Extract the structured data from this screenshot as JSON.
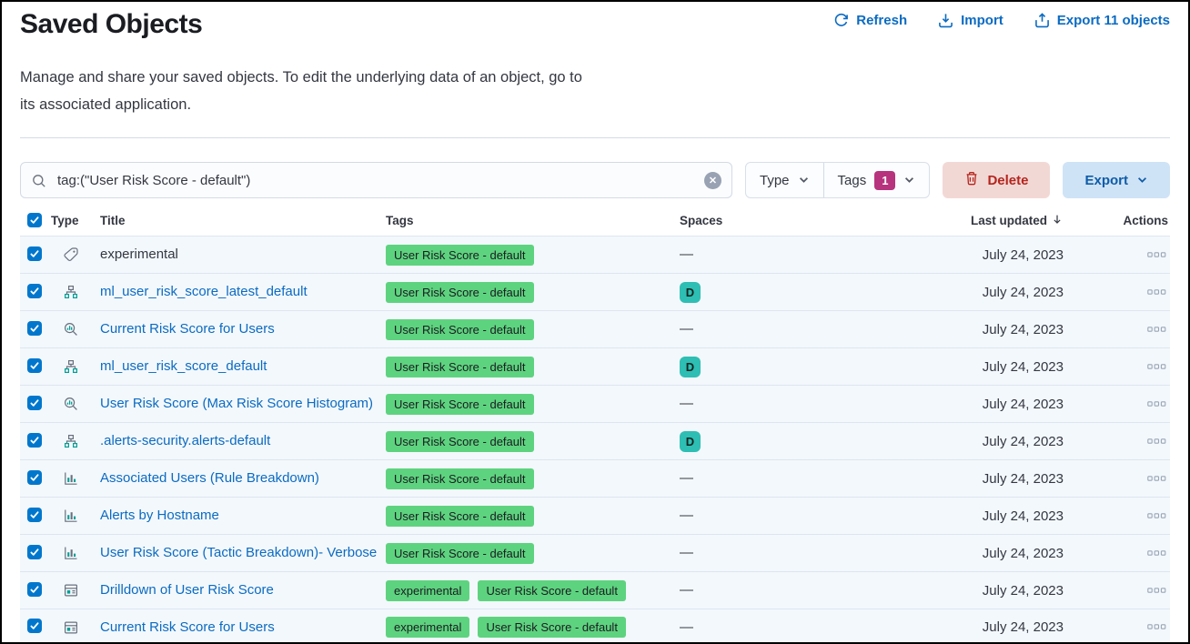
{
  "page": {
    "title": "Saved Objects",
    "description_line1": "Manage and share your saved objects. To edit the underlying data of an object, go to",
    "description_line2": "its associated application."
  },
  "toolbar": {
    "refresh_label": "Refresh",
    "import_label": "Import",
    "export_label": "Export 11 objects"
  },
  "controls": {
    "search_value": "tag:(\"User Risk Score - default\")",
    "type_filter_label": "Type",
    "tags_filter_label": "Tags",
    "tags_filter_count": "1",
    "delete_label": "Delete",
    "export_label": "Export"
  },
  "table": {
    "headers": {
      "type": "Type",
      "title": "Title",
      "tags": "Tags",
      "spaces": "Spaces",
      "last_updated": "Last updated",
      "actions": "Actions"
    },
    "sort": {
      "column": "last_updated",
      "direction": "descending"
    },
    "empty_space_symbol": "—",
    "rows": [
      {
        "icon": "tag-icon",
        "title": "experimental",
        "is_link": false,
        "tags": [
          "User Risk Score - default"
        ],
        "space": null,
        "updated": "July 24, 2023"
      },
      {
        "icon": "transform-icon",
        "title": "ml_user_risk_score_latest_default",
        "is_link": true,
        "tags": [
          "User Risk Score - default"
        ],
        "space": "D",
        "updated": "July 24, 2023"
      },
      {
        "icon": "visualization-icon",
        "title": "Current Risk Score for Users",
        "is_link": true,
        "tags": [
          "User Risk Score - default"
        ],
        "space": null,
        "updated": "July 24, 2023"
      },
      {
        "icon": "transform-icon",
        "title": "ml_user_risk_score_default",
        "is_link": true,
        "tags": [
          "User Risk Score - default"
        ],
        "space": "D",
        "updated": "July 24, 2023"
      },
      {
        "icon": "visualization-icon",
        "title": "User Risk Score (Max Risk Score Histogram)",
        "is_link": true,
        "tags": [
          "User Risk Score - default"
        ],
        "space": null,
        "updated": "July 24, 2023"
      },
      {
        "icon": "transform-icon",
        "title": ".alerts-security.alerts-default",
        "is_link": true,
        "tags": [
          "User Risk Score - default"
        ],
        "space": "D",
        "updated": "July 24, 2023"
      },
      {
        "icon": "lens-icon",
        "title": "Associated Users (Rule Breakdown)",
        "is_link": true,
        "tags": [
          "User Risk Score - default"
        ],
        "space": null,
        "updated": "July 24, 2023"
      },
      {
        "icon": "lens-icon",
        "title": "Alerts by Hostname",
        "is_link": true,
        "tags": [
          "User Risk Score - default"
        ],
        "space": null,
        "updated": "July 24, 2023"
      },
      {
        "icon": "lens-icon",
        "title": "User Risk Score (Tactic Breakdown)- Verbose",
        "is_link": true,
        "tags": [
          "User Risk Score - default"
        ],
        "space": null,
        "updated": "July 24, 2023"
      },
      {
        "icon": "dashboard-icon",
        "title": "Drilldown of User Risk Score",
        "is_link": true,
        "tags": [
          "experimental",
          "User Risk Score - default"
        ],
        "space": null,
        "updated": "July 24, 2023"
      },
      {
        "icon": "dashboard-icon",
        "title": "Current Risk Score for Users",
        "is_link": true,
        "tags": [
          "experimental",
          "User Risk Score - default"
        ],
        "space": null,
        "updated": "July 24, 2023"
      }
    ]
  },
  "colors": {
    "primary": "#0b6bc2",
    "title_text": "#1a1c21",
    "body_text": "#343741",
    "border": "#d3dae6",
    "row_border": "#dfe5ef",
    "row_bg": "#f3f8fc",
    "input_bg": "#fbfcfd",
    "checkbox_bg": "#0077cc",
    "tag_badge_bg": "#5ed37f",
    "space_badge_bg": "#2ebeb3",
    "tags_count_bg": "#b7337d",
    "delete_bg": "#f2d8d5",
    "delete_text": "#b4251d",
    "export_bg": "#cfe3f6",
    "export_text": "#0f5ca8",
    "icon_gray": "#69707d",
    "icon_teal": "#009e94"
  }
}
